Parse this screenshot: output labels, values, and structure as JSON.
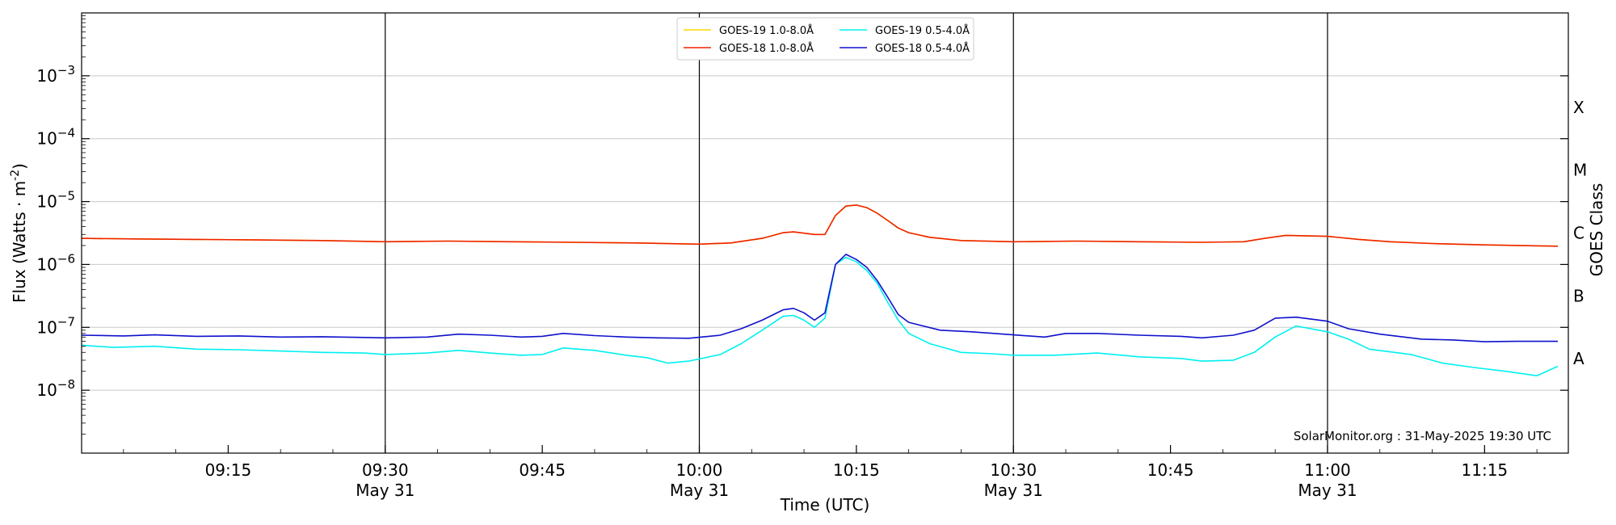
{
  "chart_data": {
    "type": "line",
    "xlabel": "Time (UTC)",
    "ylabel": "Flux (Watts · m",
    "ylabel_sup": "-2",
    "ylabel_close": ")",
    "ylabel_right": "GOES Class",
    "credit": "SolarMonitor.org : 31-May-2025 19:30 UTC",
    "y_scale": "log",
    "ylim": [
      1e-09,
      0.01
    ],
    "xlim": [
      "09:01",
      "11:23"
    ],
    "grid": "horizontal",
    "legend_position": "top-center",
    "y_ticks": [
      {
        "value": 1e-08,
        "base": "10",
        "exp": "−8"
      },
      {
        "value": 1e-07,
        "base": "10",
        "exp": "−7"
      },
      {
        "value": 1e-06,
        "base": "10",
        "exp": "−6"
      },
      {
        "value": 1e-05,
        "base": "10",
        "exp": "−5"
      },
      {
        "value": 0.0001,
        "base": "10",
        "exp": "−4"
      },
      {
        "value": 0.001,
        "base": "10",
        "exp": "−3"
      }
    ],
    "x_ticks": [
      {
        "time": "09:15",
        "label": "09:15",
        "sub": ""
      },
      {
        "time": "09:30",
        "label": "09:30",
        "sub": "May 31"
      },
      {
        "time": "09:45",
        "label": "09:45",
        "sub": ""
      },
      {
        "time": "10:00",
        "label": "10:00",
        "sub": "May 31"
      },
      {
        "time": "10:15",
        "label": "10:15",
        "sub": ""
      },
      {
        "time": "10:30",
        "label": "10:30",
        "sub": "May 31"
      },
      {
        "time": "10:45",
        "label": "10:45",
        "sub": ""
      },
      {
        "time": "11:00",
        "label": "11:00",
        "sub": "May 31"
      },
      {
        "time": "11:15",
        "label": "11:15",
        "sub": ""
      }
    ],
    "vertical_lines": [
      "09:30",
      "10:00",
      "10:30",
      "11:00"
    ],
    "goes_classes": [
      {
        "label": "A",
        "value": 3.16e-08
      },
      {
        "label": "B",
        "value": 3.16e-07
      },
      {
        "label": "C",
        "value": 3.16e-06
      },
      {
        "label": "M",
        "value": 3.16e-05
      },
      {
        "label": "X",
        "value": 0.000316
      }
    ],
    "series": [
      {
        "name": "GOES-19 1.0-8.0Å",
        "color": "#ffd700",
        "points": [
          [
            "09:01",
            2.6e-06
          ],
          [
            "09:06",
            2.55e-06
          ],
          [
            "09:12",
            2.5e-06
          ],
          [
            "09:18",
            2.45e-06
          ],
          [
            "09:24",
            2.4e-06
          ],
          [
            "09:30",
            2.3e-06
          ],
          [
            "09:36",
            2.35e-06
          ],
          [
            "09:42",
            2.3e-06
          ],
          [
            "09:48",
            2.25e-06
          ],
          [
            "09:54",
            2.2e-06
          ],
          [
            "10:00",
            2.1e-06
          ],
          [
            "10:03",
            2.2e-06
          ],
          [
            "10:06",
            2.6e-06
          ],
          [
            "10:08",
            3.2e-06
          ],
          [
            "10:09",
            3.3e-06
          ],
          [
            "10:11",
            3e-06
          ],
          [
            "10:12",
            3e-06
          ],
          [
            "10:13",
            6e-06
          ],
          [
            "10:14",
            8.5e-06
          ],
          [
            "10:15",
            8.8e-06
          ],
          [
            "10:16",
            8e-06
          ],
          [
            "10:17",
            6.5e-06
          ],
          [
            "10:18",
            5e-06
          ],
          [
            "10:19",
            3.8e-06
          ],
          [
            "10:20",
            3.2e-06
          ],
          [
            "10:22",
            2.7e-06
          ],
          [
            "10:25",
            2.4e-06
          ],
          [
            "10:30",
            2.3e-06
          ],
          [
            "10:36",
            2.35e-06
          ],
          [
            "10:42",
            2.3e-06
          ],
          [
            "10:48",
            2.25e-06
          ],
          [
            "10:52",
            2.3e-06
          ],
          [
            "10:54",
            2.6e-06
          ],
          [
            "10:56",
            2.9e-06
          ],
          [
            "11:00",
            2.8e-06
          ],
          [
            "11:03",
            2.5e-06
          ],
          [
            "11:06",
            2.3e-06
          ],
          [
            "11:10",
            2.15e-06
          ],
          [
            "11:15",
            2.05e-06
          ],
          [
            "11:22",
            1.95e-06
          ]
        ]
      },
      {
        "name": "GOES-18 1.0-8.0Å",
        "color": "#ee2200",
        "points": [
          [
            "09:01",
            2.6e-06
          ],
          [
            "09:06",
            2.55e-06
          ],
          [
            "09:12",
            2.5e-06
          ],
          [
            "09:18",
            2.45e-06
          ],
          [
            "09:24",
            2.4e-06
          ],
          [
            "09:30",
            2.3e-06
          ],
          [
            "09:36",
            2.35e-06
          ],
          [
            "09:42",
            2.3e-06
          ],
          [
            "09:48",
            2.25e-06
          ],
          [
            "09:54",
            2.2e-06
          ],
          [
            "10:00",
            2.1e-06
          ],
          [
            "10:03",
            2.2e-06
          ],
          [
            "10:06",
            2.6e-06
          ],
          [
            "10:08",
            3.2e-06
          ],
          [
            "10:09",
            3.3e-06
          ],
          [
            "10:11",
            3e-06
          ],
          [
            "10:12",
            3e-06
          ],
          [
            "10:13",
            6e-06
          ],
          [
            "10:14",
            8.5e-06
          ],
          [
            "10:15",
            8.8e-06
          ],
          [
            "10:16",
            8e-06
          ],
          [
            "10:17",
            6.5e-06
          ],
          [
            "10:18",
            5e-06
          ],
          [
            "10:19",
            3.8e-06
          ],
          [
            "10:20",
            3.2e-06
          ],
          [
            "10:22",
            2.7e-06
          ],
          [
            "10:25",
            2.4e-06
          ],
          [
            "10:30",
            2.3e-06
          ],
          [
            "10:36",
            2.35e-06
          ],
          [
            "10:42",
            2.3e-06
          ],
          [
            "10:48",
            2.25e-06
          ],
          [
            "10:52",
            2.3e-06
          ],
          [
            "10:54",
            2.6e-06
          ],
          [
            "10:56",
            2.9e-06
          ],
          [
            "11:00",
            2.8e-06
          ],
          [
            "11:03",
            2.5e-06
          ],
          [
            "11:06",
            2.3e-06
          ],
          [
            "11:10",
            2.15e-06
          ],
          [
            "11:15",
            2.05e-06
          ],
          [
            "11:22",
            1.95e-06
          ]
        ]
      },
      {
        "name": "GOES-19 0.5-4.0Å",
        "color": "#00f0f0",
        "points": [
          [
            "09:01",
            5.2e-08
          ],
          [
            "09:04",
            4.8e-08
          ],
          [
            "09:08",
            5e-08
          ],
          [
            "09:12",
            4.5e-08
          ],
          [
            "09:16",
            4.4e-08
          ],
          [
            "09:20",
            4.2e-08
          ],
          [
            "09:24",
            4e-08
          ],
          [
            "09:28",
            3.9e-08
          ],
          [
            "09:30",
            3.7e-08
          ],
          [
            "09:34",
            3.9e-08
          ],
          [
            "09:37",
            4.3e-08
          ],
          [
            "09:40",
            3.9e-08
          ],
          [
            "09:43",
            3.6e-08
          ],
          [
            "09:45",
            3.7e-08
          ],
          [
            "09:47",
            4.7e-08
          ],
          [
            "09:50",
            4.3e-08
          ],
          [
            "09:53",
            3.6e-08
          ],
          [
            "09:55",
            3.3e-08
          ],
          [
            "09:57",
            2.7e-08
          ],
          [
            "09:59",
            2.9e-08
          ],
          [
            "10:02",
            3.7e-08
          ],
          [
            "10:04",
            5.5e-08
          ],
          [
            "10:06",
            9e-08
          ],
          [
            "10:08",
            1.5e-07
          ],
          [
            "10:09",
            1.55e-07
          ],
          [
            "10:10",
            1.3e-07
          ],
          [
            "10:11",
            1e-07
          ],
          [
            "10:12",
            1.4e-07
          ],
          [
            "10:13",
            1e-06
          ],
          [
            "10:14",
            1.3e-06
          ],
          [
            "10:15",
            1.1e-06
          ],
          [
            "10:16",
            8e-07
          ],
          [
            "10:17",
            5e-07
          ],
          [
            "10:18",
            2.5e-07
          ],
          [
            "10:19",
            1.3e-07
          ],
          [
            "10:20",
            8e-08
          ],
          [
            "10:22",
            5.5e-08
          ],
          [
            "10:25",
            4e-08
          ],
          [
            "10:28",
            3.8e-08
          ],
          [
            "10:30",
            3.6e-08
          ],
          [
            "10:34",
            3.6e-08
          ],
          [
            "10:38",
            3.9e-08
          ],
          [
            "10:42",
            3.4e-08
          ],
          [
            "10:46",
            3.2e-08
          ],
          [
            "10:48",
            2.9e-08
          ],
          [
            "10:51",
            3e-08
          ],
          [
            "10:53",
            4e-08
          ],
          [
            "10:55",
            7e-08
          ],
          [
            "10:57",
            1.05e-07
          ],
          [
            "11:00",
            8.5e-08
          ],
          [
            "11:02",
            6.5e-08
          ],
          [
            "11:04",
            4.5e-08
          ],
          [
            "11:08",
            3.7e-08
          ],
          [
            "11:11",
            2.7e-08
          ],
          [
            "11:14",
            2.3e-08
          ],
          [
            "11:17",
            2e-08
          ],
          [
            "11:20",
            1.7e-08
          ],
          [
            "11:22",
            2.4e-08
          ]
        ]
      },
      {
        "name": "GOES-18 0.5-4.0Å",
        "color": "#1010cc",
        "points": [
          [
            "09:01",
            7.5e-08
          ],
          [
            "09:05",
            7.3e-08
          ],
          [
            "09:08",
            7.6e-08
          ],
          [
            "09:12",
            7.2e-08
          ],
          [
            "09:16",
            7.3e-08
          ],
          [
            "09:20",
            7e-08
          ],
          [
            "09:24",
            7.1e-08
          ],
          [
            "09:28",
            6.9e-08
          ],
          [
            "09:30",
            6.8e-08
          ],
          [
            "09:34",
            7e-08
          ],
          [
            "09:37",
            7.8e-08
          ],
          [
            "09:40",
            7.5e-08
          ],
          [
            "09:43",
            7e-08
          ],
          [
            "09:45",
            7.2e-08
          ],
          [
            "09:47",
            8e-08
          ],
          [
            "09:50",
            7.4e-08
          ],
          [
            "09:53",
            7e-08
          ],
          [
            "09:56",
            6.8e-08
          ],
          [
            "09:59",
            6.7e-08
          ],
          [
            "10:02",
            7.5e-08
          ],
          [
            "10:04",
            9.5e-08
          ],
          [
            "10:06",
            1.3e-07
          ],
          [
            "10:08",
            1.9e-07
          ],
          [
            "10:09",
            2e-07
          ],
          [
            "10:10",
            1.7e-07
          ],
          [
            "10:11",
            1.3e-07
          ],
          [
            "10:12",
            1.7e-07
          ],
          [
            "10:13",
            1e-06
          ],
          [
            "10:14",
            1.45e-06
          ],
          [
            "10:15",
            1.2e-06
          ],
          [
            "10:16",
            9e-07
          ],
          [
            "10:17",
            5.5e-07
          ],
          [
            "10:18",
            3e-07
          ],
          [
            "10:19",
            1.6e-07
          ],
          [
            "10:20",
            1.2e-07
          ],
          [
            "10:23",
            9e-08
          ],
          [
            "10:26",
            8.5e-08
          ],
          [
            "10:30",
            7.6e-08
          ],
          [
            "10:33",
            7e-08
          ],
          [
            "10:35",
            8e-08
          ],
          [
            "10:38",
            8e-08
          ],
          [
            "10:42",
            7.5e-08
          ],
          [
            "10:46",
            7.2e-08
          ],
          [
            "10:48",
            6.8e-08
          ],
          [
            "10:51",
            7.5e-08
          ],
          [
            "10:53",
            9e-08
          ],
          [
            "10:55",
            1.4e-07
          ],
          [
            "10:57",
            1.45e-07
          ],
          [
            "11:00",
            1.25e-07
          ],
          [
            "11:02",
            9.5e-08
          ],
          [
            "11:05",
            7.8e-08
          ],
          [
            "11:09",
            6.5e-08
          ],
          [
            "11:12",
            6.3e-08
          ],
          [
            "11:15",
            5.9e-08
          ],
          [
            "11:18",
            6e-08
          ],
          [
            "11:22",
            6e-08
          ]
        ]
      }
    ]
  }
}
